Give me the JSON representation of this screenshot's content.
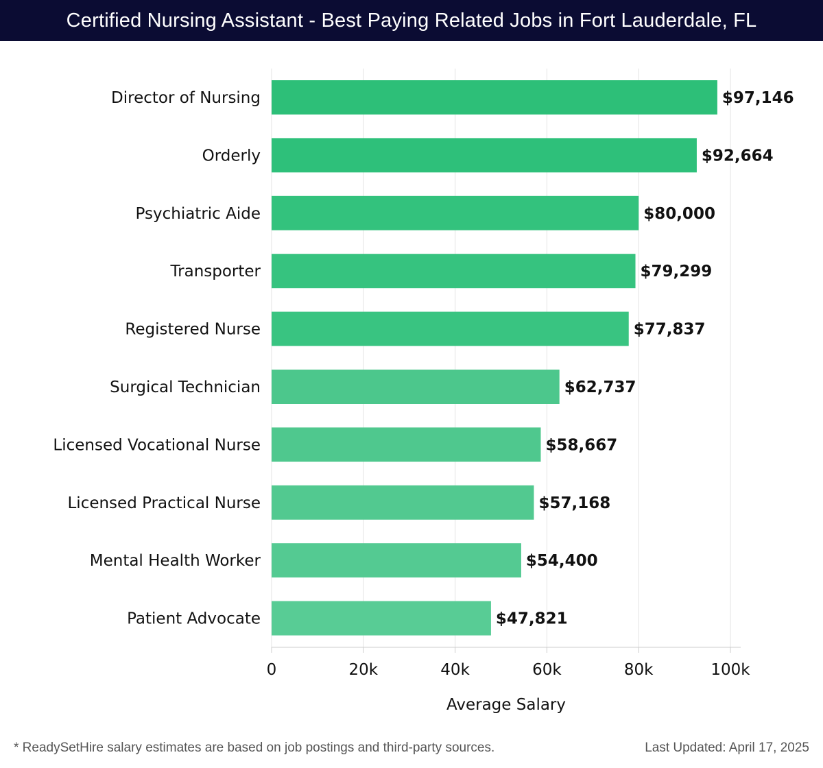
{
  "header": {
    "title": "Certified Nursing Assistant - Best Paying Related Jobs in Fort Lauderdale, FL"
  },
  "chart_data": {
    "type": "bar",
    "orientation": "horizontal",
    "title": "Certified Nursing Assistant - Best Paying Related Jobs in Fort Lauderdale, FL",
    "xlabel": "Average Salary",
    "ylabel": "",
    "xlim": [
      0,
      100000
    ],
    "xticks": [
      0,
      20000,
      40000,
      60000,
      80000,
      100000
    ],
    "xtick_labels": [
      "0",
      "20k",
      "40k",
      "60k",
      "80k",
      "100k"
    ],
    "grid": true,
    "categories": [
      "Director of Nursing",
      "Orderly",
      "Psychiatric Aide",
      "Transporter",
      "Registered Nurse",
      "Surgical Technician",
      "Licensed Vocational Nurse",
      "Licensed Practical Nurse",
      "Mental Health Worker",
      "Patient Advocate"
    ],
    "values": [
      97146,
      92664,
      80000,
      79299,
      77837,
      62737,
      58667,
      57168,
      54400,
      47821
    ],
    "value_labels": [
      "$97,146",
      "$92,664",
      "$80,000",
      "$79,299",
      "$77,837",
      "$62,737",
      "$58,667",
      "$57,168",
      "$54,400",
      "$47,821"
    ],
    "colors": [
      "#2dbf78",
      "#2ec07a",
      "#33c27d",
      "#36c37f",
      "#39c481",
      "#4cc78c",
      "#4fc88e",
      "#52c990",
      "#54ca92",
      "#58cc95"
    ]
  },
  "footer": {
    "note": "* ReadySetHire salary estimates are based on job postings and third-party sources.",
    "updated": "Last Updated: April 17, 2025"
  },
  "colors": {
    "header_bg": "#0b0c33",
    "grid": "#e3e3e3",
    "axis": "#cccccc"
  }
}
